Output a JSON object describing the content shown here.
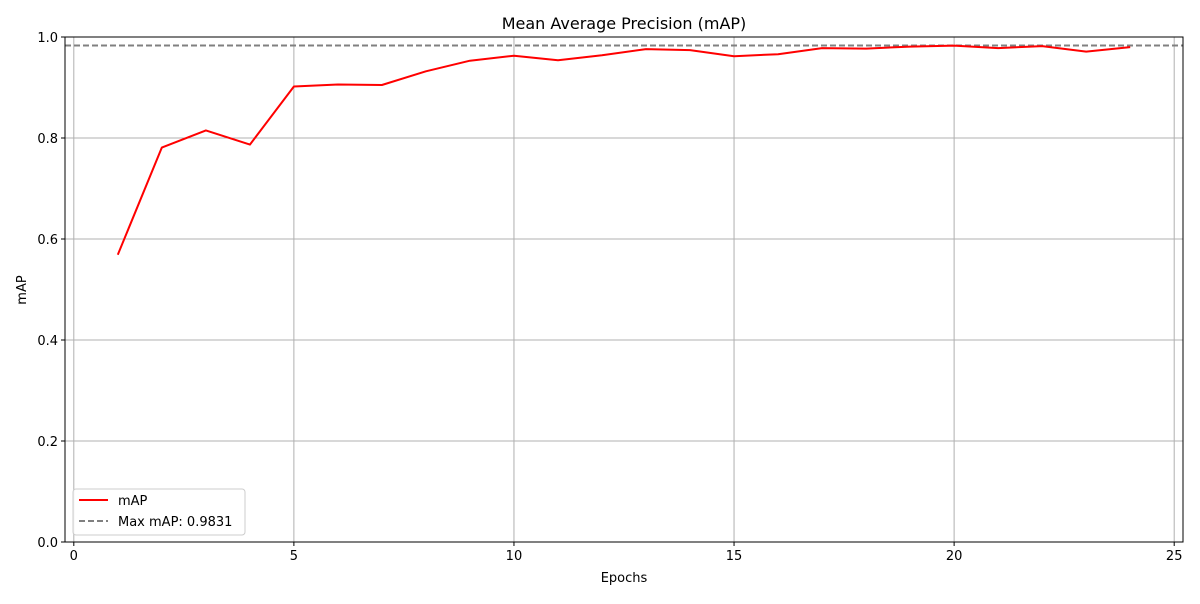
{
  "chart_data": {
    "type": "line",
    "title": "Mean Average Precision (mAP)",
    "xlabel": "Epochs",
    "ylabel": "mAP",
    "xlim": [
      -0.2,
      25.2
    ],
    "ylim": [
      0.0,
      1.0
    ],
    "xticks": [
      0,
      5,
      10,
      15,
      20,
      25
    ],
    "xtick_labels": [
      "0",
      "5",
      "10",
      "15",
      "20",
      "25"
    ],
    "yticks": [
      0.0,
      0.2,
      0.4,
      0.6,
      0.8,
      1.0
    ],
    "ytick_labels": [
      "0.0",
      "0.2",
      "0.4",
      "0.6",
      "0.8",
      "1.0"
    ],
    "grid": true,
    "legend_position": "lower-left",
    "series": [
      {
        "name": "mAP",
        "color": "#ff0000",
        "style": "solid",
        "x": [
          1,
          2,
          3,
          4,
          5,
          6,
          7,
          8,
          9,
          10,
          11,
          12,
          13,
          14,
          15,
          16,
          17,
          18,
          19,
          20,
          21,
          22,
          23,
          24
        ],
        "y": [
          0.569,
          0.781,
          0.815,
          0.787,
          0.902,
          0.906,
          0.905,
          0.932,
          0.953,
          0.963,
          0.954,
          0.964,
          0.976,
          0.974,
          0.962,
          0.966,
          0.978,
          0.977,
          0.981,
          0.983,
          0.978,
          0.982,
          0.971,
          0.98
        ]
      }
    ],
    "reference_lines": [
      {
        "name": "Max mAP: 0.9831",
        "orientation": "horizontal",
        "value": 0.9831,
        "color": "#808080",
        "style": "dashed"
      }
    ]
  }
}
